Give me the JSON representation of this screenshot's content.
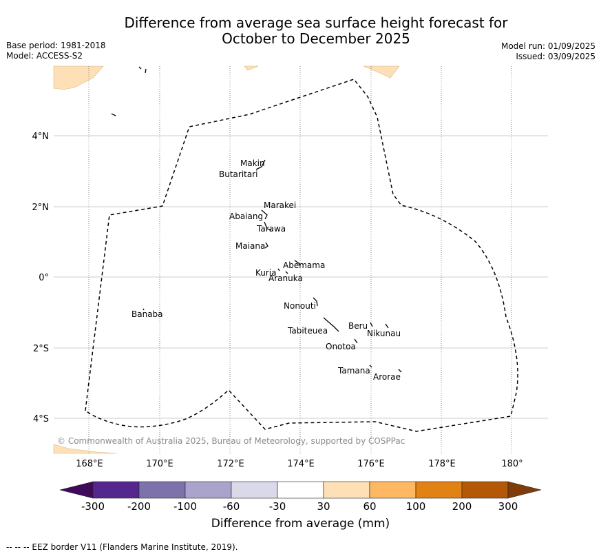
{
  "header": {
    "title_line1": "Difference from average sea surface height forecast for",
    "title_line2": "October to December 2025",
    "base_period": "Base period: 1981-2018",
    "model": "Model: ACCESS-S2",
    "model_run": "Model run: 01/09/2025",
    "issued": "Issued: 03/09/2025"
  },
  "map": {
    "lat_ticks": [
      "4°N",
      "2°N",
      "0°",
      "2°S",
      "4°S"
    ],
    "lon_ticks": [
      "168°E",
      "170°E",
      "172°E",
      "174°E",
      "176°E",
      "178°E",
      "180°"
    ],
    "islands": [
      "Makin",
      "Butaritari",
      "Marakei",
      "Abaiang",
      "Tarawa",
      "Maiana",
      "Abemama",
      "Kuria",
      "Aranuka",
      "Banaba",
      "Nonouti",
      "Beru",
      "Nikunau",
      "Tabiteuea",
      "Onotoa",
      "Tamana",
      "Arorae"
    ],
    "copyright": "© Commonwealth of Australia 2025, Bureau of Meteorology, supported by COSPPac",
    "eez_line_style": "dashed black",
    "grid": "on"
  },
  "colorbar": {
    "title": "Difference from average (mm)",
    "labels": [
      "-300",
      "-200",
      "-100",
      "-60",
      "-30",
      "30",
      "60",
      "100",
      "200",
      "300"
    ],
    "colors": [
      "#3f0a5b",
      "#54278f",
      "#7e72ab",
      "#aaa3cc",
      "#d9d9ea",
      "#ffffff",
      "#fde0b5",
      "#fdb863",
      "#e08214",
      "#b35806",
      "#7f3b08"
    ]
  },
  "footer": {
    "eez_legend": "--  --  -- EEZ border V11 (Flanders Marine Institute, 2019)."
  }
}
